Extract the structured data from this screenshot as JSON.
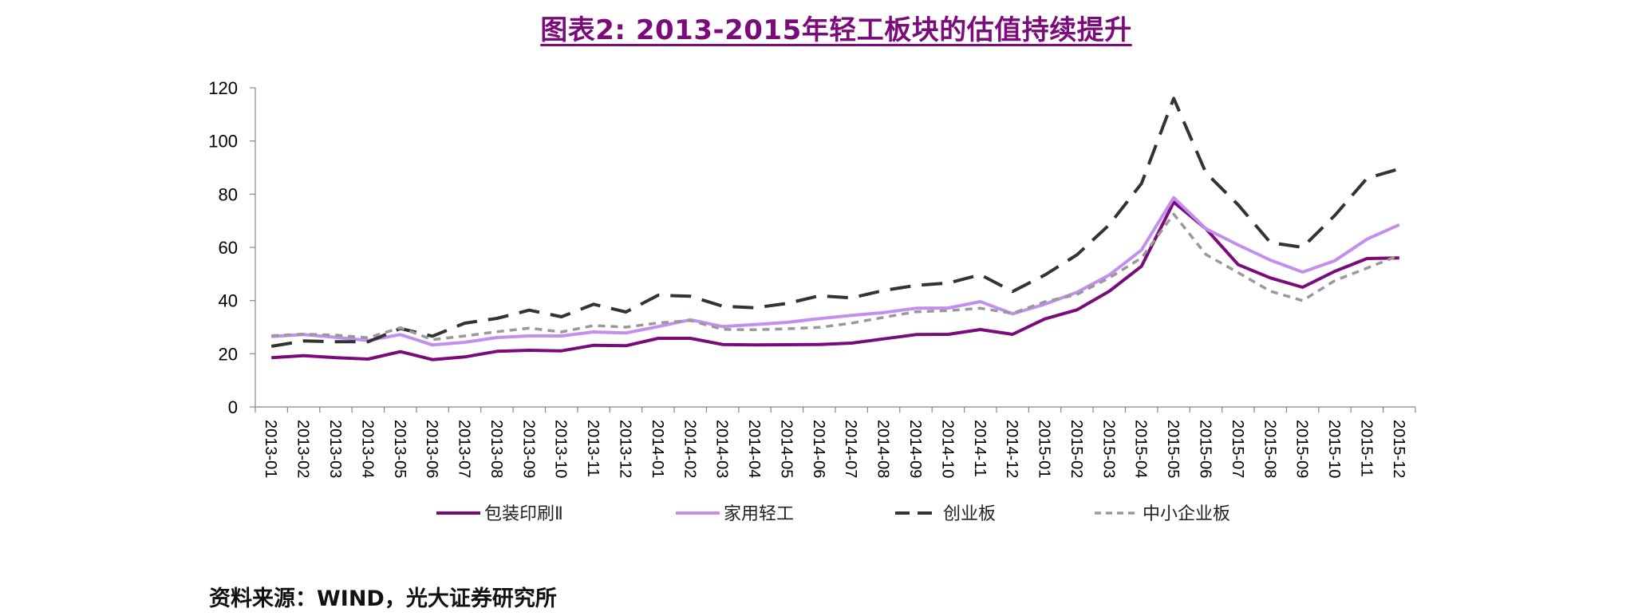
{
  "title": "图表2: 2013-2015年轻工板块的估值持续提升",
  "source": "资料来源：WIND，光大证券研究所",
  "chart_data": {
    "type": "line",
    "title": "图表2: 2013-2015年轻工板块的估值持续提升",
    "xlabel": "",
    "ylabel": "",
    "ylim": [
      0,
      120
    ],
    "yticks": [
      0,
      20,
      40,
      60,
      80,
      100,
      120
    ],
    "grid": false,
    "legend_position": "bottom",
    "categories": [
      "2013-01",
      "2013-02",
      "2013-03",
      "2013-04",
      "2013-05",
      "2013-06",
      "2013-07",
      "2013-08",
      "2013-09",
      "2013-10",
      "2013-11",
      "2013-12",
      "2014-01",
      "2014-02",
      "2014-03",
      "2014-04",
      "2014-05",
      "2014-06",
      "2014-07",
      "2014-08",
      "2014-09",
      "2014-10",
      "2014-11",
      "2014-12",
      "2015-01",
      "2015-02",
      "2015-03",
      "2015-04",
      "2015-05",
      "2015-06",
      "2015-07",
      "2015-08",
      "2015-09",
      "2015-10",
      "2015-11",
      "2015-12"
    ],
    "series": [
      {
        "name": "包装印刷Ⅱ",
        "color": "#7b0a7b",
        "dash": "solid",
        "values": [
          18.5,
          19.3,
          18.5,
          18.0,
          20.8,
          17.8,
          18.8,
          20.9,
          21.3,
          21.1,
          23.2,
          23.0,
          25.8,
          25.8,
          23.5,
          23.3,
          23.4,
          23.5,
          24.0,
          25.6,
          27.2,
          27.3,
          29.1,
          27.3,
          33.1,
          36.5,
          43.5,
          52.9,
          77.0,
          67.0,
          53.5,
          48.5,
          45.0,
          51.0,
          55.8,
          56.0
        ]
      },
      {
        "name": "家用轻工",
        "color": "#c38fef",
        "dash": "solid",
        "values": [
          26.5,
          27.2,
          26.2,
          25.0,
          27.2,
          23.3,
          24.3,
          26.1,
          26.7,
          26.7,
          28.2,
          27.8,
          30.2,
          32.8,
          30.2,
          31.0,
          31.8,
          33.2,
          34.4,
          35.5,
          37.1,
          37.2,
          39.6,
          35.0,
          38.6,
          43.1,
          49.6,
          59.0,
          78.7,
          67.0,
          60.9,
          55.2,
          50.7,
          55.0,
          63.1,
          68.5
        ]
      },
      {
        "name": "创业板",
        "color": "#333333",
        "dash": "long",
        "values": [
          22.8,
          24.8,
          24.5,
          24.5,
          29.5,
          26.6,
          31.5,
          33.3,
          36.4,
          33.9,
          38.6,
          35.7,
          42.0,
          41.6,
          37.9,
          37.3,
          38.9,
          41.8,
          41.0,
          43.8,
          45.7,
          46.6,
          49.7,
          43.4,
          49.6,
          57.2,
          68.5,
          84.0,
          116.0,
          88.0,
          76.0,
          61.8,
          60.0,
          72.0,
          86.0,
          89.5
        ]
      },
      {
        "name": "中小企业板",
        "color": "#999999",
        "dash": "short",
        "values": [
          26.8,
          27.4,
          27.0,
          26.0,
          29.8,
          25.3,
          26.7,
          28.3,
          29.6,
          28.2,
          30.6,
          30.0,
          31.6,
          32.5,
          29.2,
          29.0,
          29.4,
          29.9,
          31.5,
          33.7,
          35.8,
          36.2,
          37.1,
          35.2,
          39.5,
          42.3,
          48.5,
          56.0,
          72.5,
          57.3,
          50.5,
          43.5,
          40.0,
          47.5,
          52.2,
          57.0
        ]
      }
    ]
  }
}
